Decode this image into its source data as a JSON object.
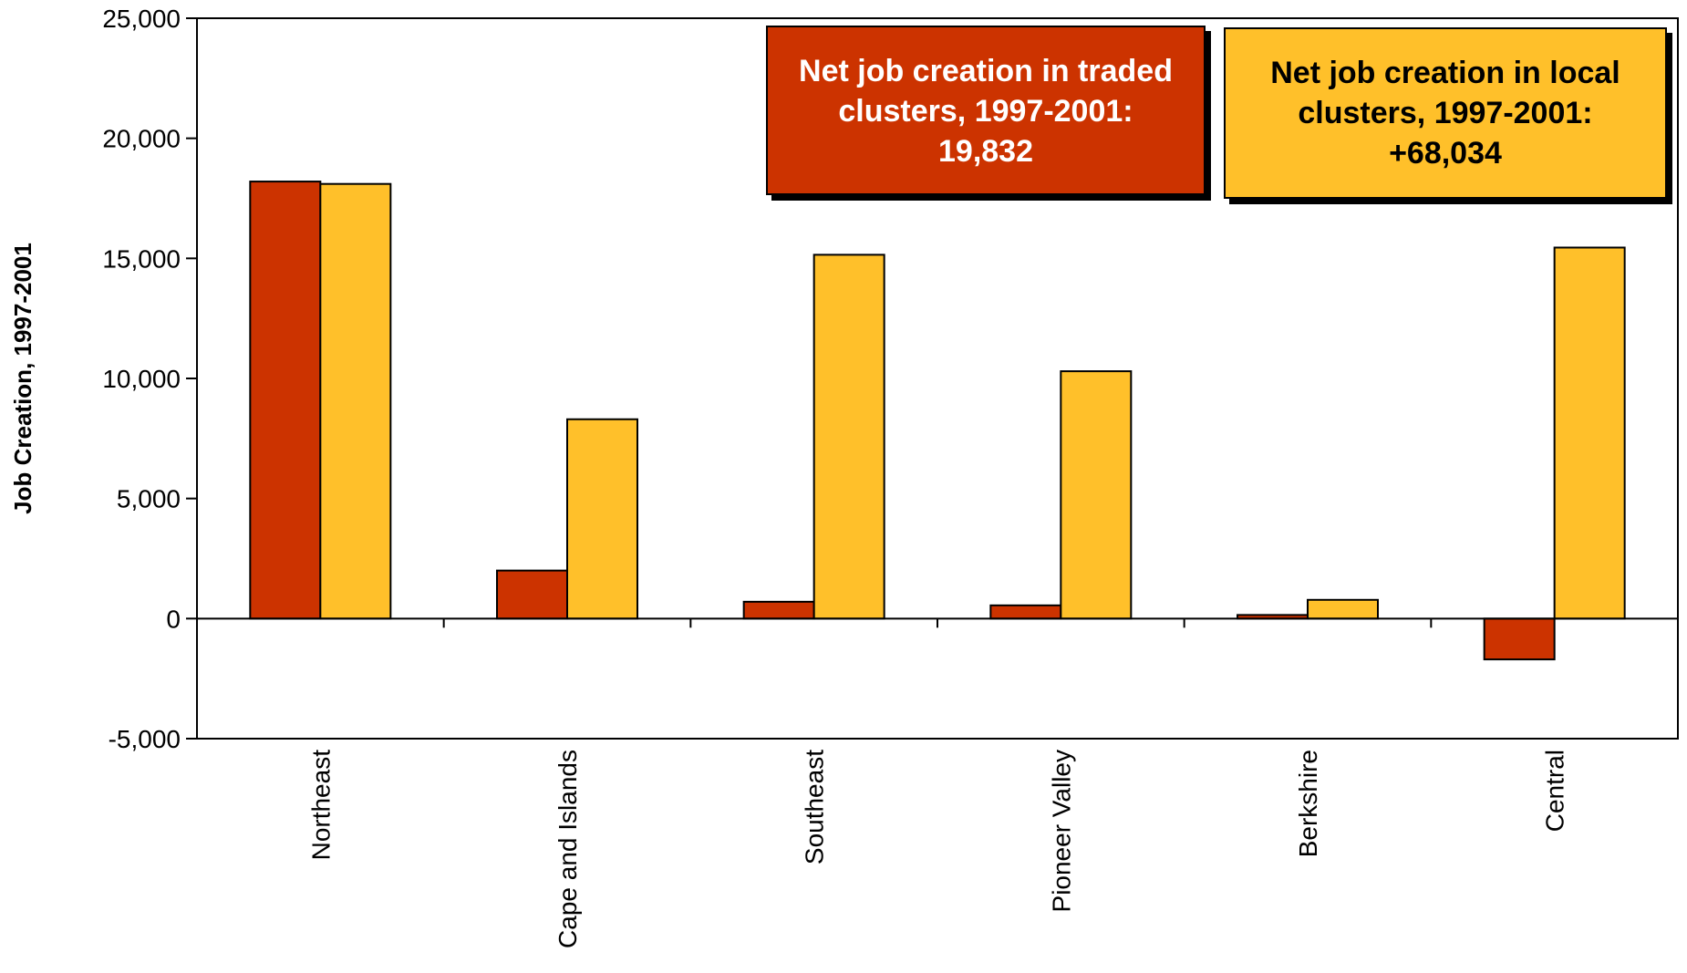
{
  "chart_data": {
    "type": "bar",
    "title": "",
    "xlabel": "",
    "ylabel": "Job Creation, 1997-2001",
    "ylim": [
      -5000,
      25000
    ],
    "yticks": [
      -5000,
      0,
      5000,
      10000,
      15000,
      20000,
      25000
    ],
    "ytick_labels": [
      "-5,000",
      "0",
      "5,000",
      "10,000",
      "15,000",
      "20,000",
      "25,000"
    ],
    "categories": [
      "Northeast",
      "Cape and Islands",
      "Southeast",
      "Pioneer Valley",
      "Berkshire",
      "Central"
    ],
    "series": [
      {
        "key": "traded",
        "color": "#CC3300",
        "values": [
          18200,
          2000,
          700,
          550,
          150,
          -1700
        ]
      },
      {
        "key": "local",
        "color": "#FFC02A",
        "values": [
          18100,
          8300,
          15150,
          10300,
          780,
          15450
        ]
      }
    ],
    "grid": false,
    "annotations": [
      {
        "key": "traded",
        "lines": [
          "Net job creation in traded",
          "clusters, 1997-2001:",
          "19,832"
        ],
        "bg": "#CC3300"
      },
      {
        "key": "local",
        "lines": [
          "Net job creation in local",
          "clusters, 1997-2001:",
          "+68,034"
        ],
        "bg": "#FFC02A"
      }
    ]
  }
}
